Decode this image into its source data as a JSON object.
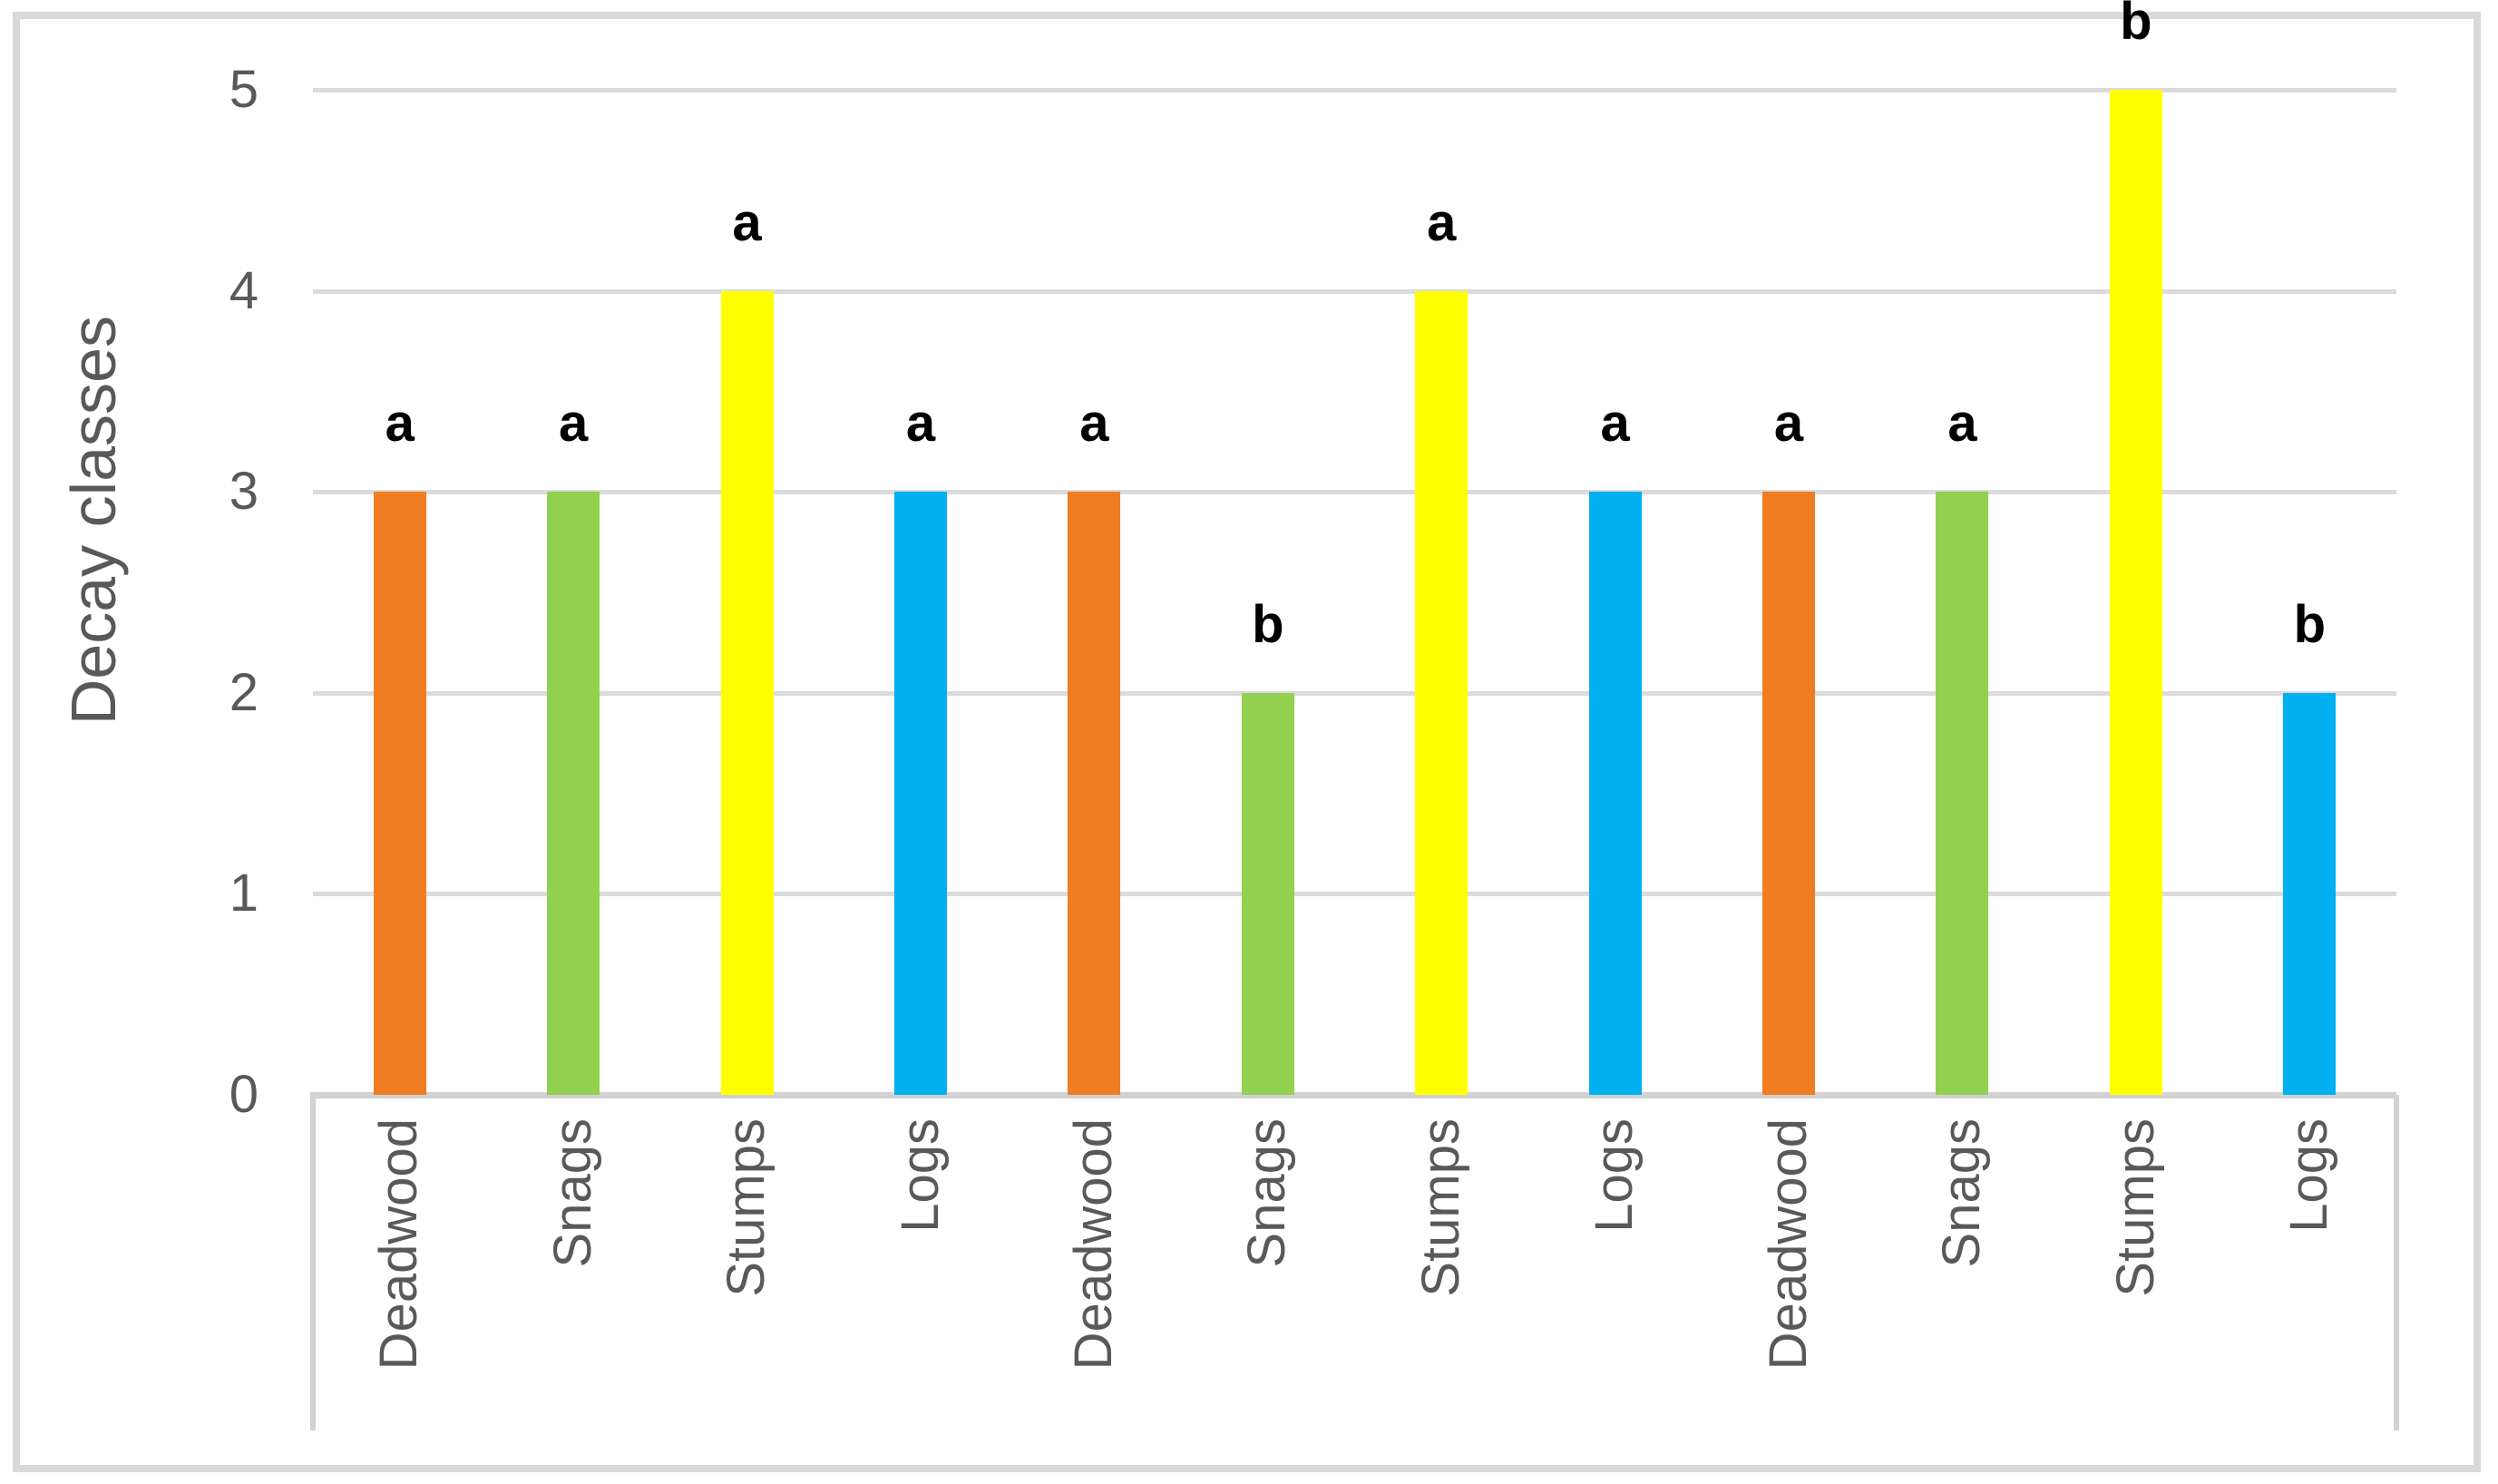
{
  "chart_data": {
    "type": "bar",
    "title": "",
    "ylabel": "Decay classes",
    "xlabel": "",
    "ylim": [
      0,
      5
    ],
    "yticks": [
      0,
      1,
      2,
      3,
      4,
      5
    ],
    "grid": true,
    "legend": "none",
    "categories": [
      "Deadwood",
      "Snags",
      "Stumps",
      "Logs",
      "Deadwood",
      "Snags",
      "Stumps",
      "Logs",
      "Deadwood",
      "Snags",
      "Stumps",
      "Logs"
    ],
    "values": [
      3,
      3,
      4,
      3,
      3,
      2,
      4,
      3,
      3,
      3,
      5,
      2
    ],
    "point_labels": [
      "a",
      "a",
      "a",
      "a",
      "a",
      "b",
      "a",
      "a",
      "a",
      "a",
      "b",
      "b"
    ],
    "bars": [
      {
        "category": "Deadwood",
        "value": 3,
        "letter": "a",
        "color": "#F07D22"
      },
      {
        "category": "Snags",
        "value": 3,
        "letter": "a",
        "color": "#92D050"
      },
      {
        "category": "Stumps",
        "value": 4,
        "letter": "a",
        "color": "#FFFF00"
      },
      {
        "category": "Logs",
        "value": 3,
        "letter": "a",
        "color": "#00B0F0"
      },
      {
        "category": "Deadwood",
        "value": 3,
        "letter": "a",
        "color": "#F07D22"
      },
      {
        "category": "Snags",
        "value": 2,
        "letter": "b",
        "color": "#92D050"
      },
      {
        "category": "Stumps",
        "value": 4,
        "letter": "a",
        "color": "#FFFF00"
      },
      {
        "category": "Logs",
        "value": 3,
        "letter": "a",
        "color": "#00B0F0"
      },
      {
        "category": "Deadwood",
        "value": 3,
        "letter": "a",
        "color": "#F07D22"
      },
      {
        "category": "Snags",
        "value": 3,
        "letter": "a",
        "color": "#92D050"
      },
      {
        "category": "Stumps",
        "value": 5,
        "letter": "b",
        "color": "#FFFF00"
      },
      {
        "category": "Logs",
        "value": 2,
        "letter": "b",
        "color": "#00B0F0"
      }
    ]
  },
  "colors": {
    "deadwood": "#F07D22",
    "snags": "#92D050",
    "stumps": "#FFFF00",
    "logs": "#00B0F0",
    "gridline": "#DBDBDB",
    "axis_line": "#D2D2D2",
    "frame_border": "#D9D9D9",
    "text": "#595959",
    "point_label": "#000000",
    "background": "#FFFFFF"
  }
}
